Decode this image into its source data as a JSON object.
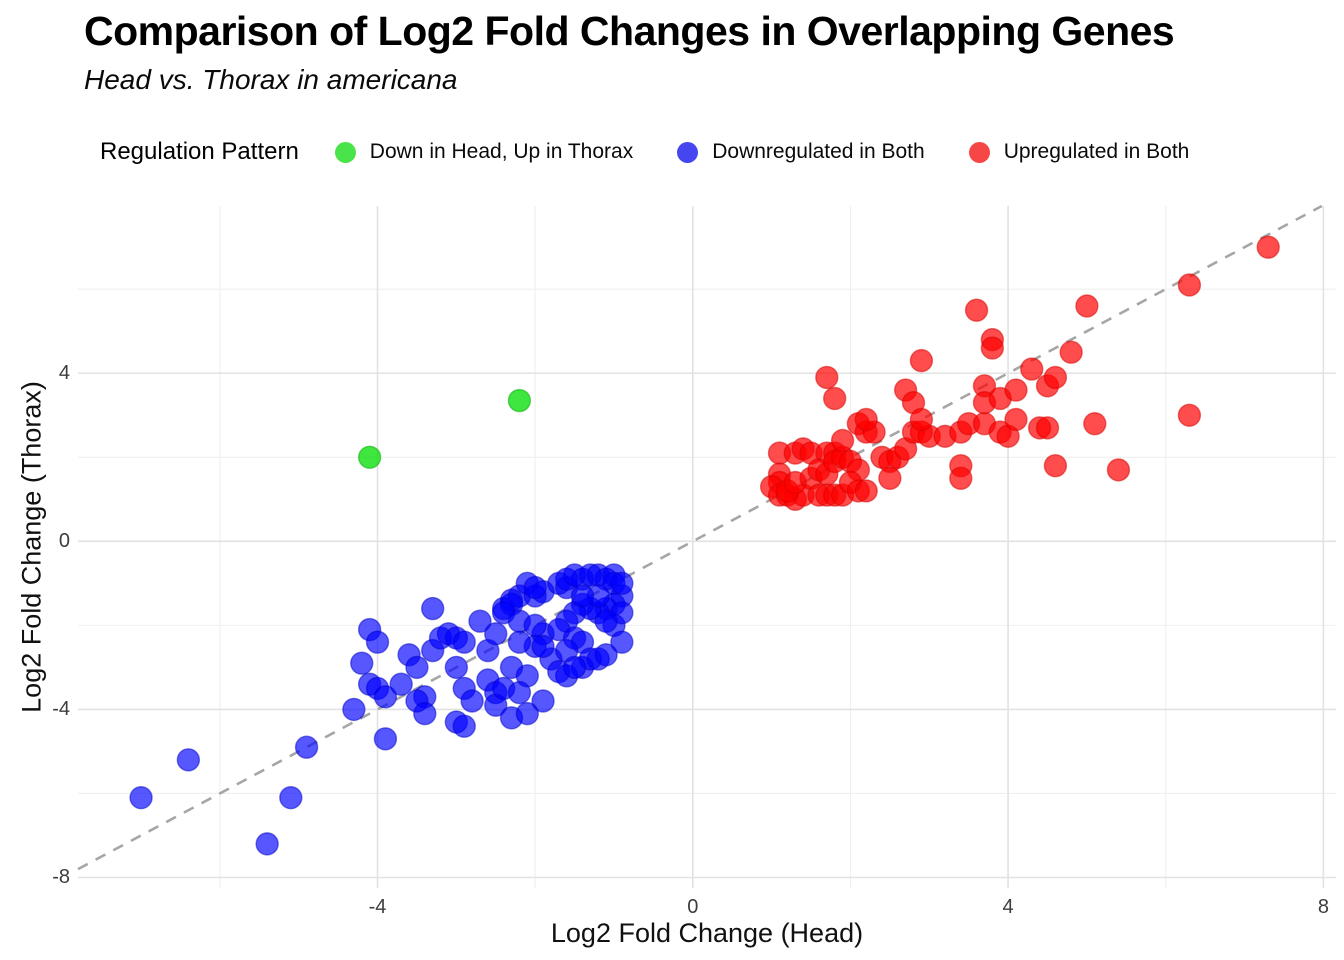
{
  "header": {
    "title": "Comparison of Log2 Fold Changes in Overlapping Genes",
    "subtitle": "Head vs. Thorax in americana"
  },
  "legend": {
    "title": "Regulation Pattern",
    "position": "top"
  },
  "chart_data": {
    "type": "scatter",
    "title": "Comparison of Log2 Fold Changes in Overlapping Genes",
    "subtitle": "Head vs. Thorax in americana",
    "xlabel": "Log2 Fold Change (Head)",
    "ylabel": "Log2 Fold Change (Thorax)",
    "xlim": [
      -7.8,
      8.16
    ],
    "ylim": [
      -8.25,
      7.98
    ],
    "x_ticks": [
      -4,
      0,
      4,
      8
    ],
    "y_ticks": [
      4,
      0,
      -4,
      -8
    ],
    "x_minor_ticks": [
      -6,
      -2,
      2,
      6
    ],
    "y_minor_ticks": [
      6,
      2,
      -2,
      -6
    ],
    "grid": true,
    "background": "#ffffff",
    "major_grid_color": "#e2e2e2",
    "minor_grid_color": "#efefef",
    "identity_line": {
      "equation": "y = x",
      "style": "dashed",
      "color": "#a6a6a6"
    },
    "point_radius_px": 11,
    "series": [
      {
        "name": "Down in Head, Up in Thorax",
        "color": "#00dd00",
        "stroke": "#00a800",
        "legend_color": "#49e449",
        "opacity": 0.75,
        "points": [
          [
            -4.1,
            2.0
          ],
          [
            -2.2,
            3.35
          ]
        ]
      },
      {
        "name": "Downregulated in Both",
        "color": "#0000ff",
        "stroke": "#0000c8",
        "legend_color": "#4646f0",
        "opacity": 0.66,
        "points": [
          [
            -7.0,
            -6.1
          ],
          [
            -6.4,
            -5.2
          ],
          [
            -5.4,
            -7.2
          ],
          [
            -5.1,
            -6.1
          ],
          [
            -4.9,
            -4.9
          ],
          [
            -3.9,
            -4.7
          ],
          [
            -4.3,
            -4.0
          ],
          [
            -4.1,
            -2.1
          ],
          [
            -4.0,
            -2.4
          ],
          [
            -4.2,
            -2.9
          ],
          [
            -4.1,
            -3.4
          ],
          [
            -4.0,
            -3.5
          ],
          [
            -3.9,
            -3.7
          ],
          [
            -3.6,
            -2.7
          ],
          [
            -3.7,
            -3.4
          ],
          [
            -3.5,
            -3.0
          ],
          [
            -3.4,
            -3.7
          ],
          [
            -3.5,
            -3.8
          ],
          [
            -3.4,
            -4.1
          ],
          [
            -3.3,
            -1.6
          ],
          [
            -3.3,
            -2.6
          ],
          [
            -3.2,
            -2.3
          ],
          [
            -3.1,
            -2.2
          ],
          [
            -3.0,
            -2.3
          ],
          [
            -2.9,
            -2.4
          ],
          [
            -3.0,
            -3.0
          ],
          [
            -2.9,
            -3.5
          ],
          [
            -2.8,
            -3.8
          ],
          [
            -3.0,
            -4.3
          ],
          [
            -2.9,
            -4.4
          ],
          [
            -2.7,
            -1.9
          ],
          [
            -2.6,
            -2.6
          ],
          [
            -2.6,
            -3.3
          ],
          [
            -2.5,
            -3.6
          ],
          [
            -2.5,
            -3.9
          ],
          [
            -2.3,
            -4.2
          ],
          [
            -2.4,
            -1.6
          ],
          [
            -2.3,
            -1.4
          ],
          [
            -2.2,
            -1.3
          ],
          [
            -2.1,
            -1.0
          ],
          [
            -2.0,
            -1.3
          ],
          [
            -1.9,
            -1.2
          ],
          [
            -1.9,
            -2.2
          ],
          [
            -2.0,
            -2.5
          ],
          [
            -1.8,
            -2.8
          ],
          [
            -1.7,
            -1.0
          ],
          [
            -1.6,
            -1.1
          ],
          [
            -1.6,
            -0.9
          ],
          [
            -1.5,
            -0.8
          ],
          [
            -1.4,
            -0.9
          ],
          [
            -1.3,
            -0.8
          ],
          [
            -1.2,
            -0.8
          ],
          [
            -1.1,
            -0.9
          ],
          [
            -1.0,
            -0.8
          ],
          [
            -1.0,
            -1.0
          ],
          [
            -0.9,
            -1.3
          ],
          [
            -1.0,
            -1.5
          ],
          [
            -1.1,
            -1.6
          ],
          [
            -1.2,
            -1.7
          ],
          [
            -1.3,
            -1.6
          ],
          [
            -1.4,
            -1.5
          ],
          [
            -1.5,
            -1.7
          ],
          [
            -1.6,
            -1.9
          ],
          [
            -1.7,
            -2.1
          ],
          [
            -1.5,
            -2.3
          ],
          [
            -1.4,
            -2.4
          ],
          [
            -1.6,
            -2.6
          ],
          [
            -1.7,
            -3.1
          ],
          [
            -1.6,
            -3.2
          ],
          [
            -1.4,
            -3.0
          ],
          [
            -1.3,
            -2.8
          ],
          [
            -1.2,
            -2.8
          ],
          [
            -1.1,
            -2.7
          ],
          [
            -1.0,
            -2.0
          ],
          [
            -0.9,
            -1.7
          ],
          [
            -1.9,
            -3.8
          ],
          [
            -2.1,
            -4.1
          ],
          [
            -0.9,
            -2.4
          ],
          [
            -2.0,
            -1.1
          ],
          [
            -0.9,
            -1.0
          ],
          [
            -1.2,
            -1.3
          ],
          [
            -1.4,
            -1.3
          ],
          [
            -2.3,
            -1.5
          ],
          [
            -2.4,
            -1.7
          ],
          [
            -2.2,
            -1.9
          ],
          [
            -2.0,
            -2.0
          ],
          [
            -2.5,
            -2.2
          ],
          [
            -2.2,
            -2.4
          ],
          [
            -1.9,
            -2.5
          ],
          [
            -1.1,
            -1.9
          ],
          [
            -1.5,
            -3.0
          ],
          [
            -2.3,
            -3.0
          ],
          [
            -2.1,
            -3.2
          ],
          [
            -2.4,
            -3.5
          ],
          [
            -2.2,
            -3.6
          ]
        ]
      },
      {
        "name": "Upregulated in Both",
        "color": "#ff0000",
        "stroke": "#d40000",
        "legend_color": "#f74646",
        "opacity": 0.7,
        "points": [
          [
            1.1,
            2.1
          ],
          [
            1.3,
            2.1
          ],
          [
            1.4,
            2.2
          ],
          [
            1.1,
            1.6
          ],
          [
            1.1,
            1.4
          ],
          [
            1.0,
            1.3
          ],
          [
            1.1,
            1.1
          ],
          [
            1.2,
            1.1
          ],
          [
            1.3,
            1.0
          ],
          [
            1.4,
            1.1
          ],
          [
            1.2,
            1.2
          ],
          [
            1.3,
            1.4
          ],
          [
            1.5,
            1.5
          ],
          [
            1.5,
            2.1
          ],
          [
            1.7,
            2.1
          ],
          [
            1.8,
            2.1
          ],
          [
            1.6,
            1.7
          ],
          [
            1.7,
            1.6
          ],
          [
            1.8,
            1.9
          ],
          [
            1.9,
            2.0
          ],
          [
            1.6,
            1.1
          ],
          [
            1.7,
            1.1
          ],
          [
            1.8,
            1.1
          ],
          [
            1.9,
            1.1
          ],
          [
            1.9,
            2.4
          ],
          [
            2.1,
            2.8
          ],
          [
            2.2,
            2.6
          ],
          [
            2.3,
            2.6
          ],
          [
            2.0,
            1.9
          ],
          [
            2.1,
            1.7
          ],
          [
            2.0,
            1.4
          ],
          [
            2.1,
            1.2
          ],
          [
            2.2,
            1.2
          ],
          [
            2.4,
            2.0
          ],
          [
            2.5,
            1.9
          ],
          [
            2.6,
            2.0
          ],
          [
            2.5,
            1.5
          ],
          [
            2.7,
            2.2
          ],
          [
            2.8,
            2.6
          ],
          [
            2.9,
            2.6
          ],
          [
            3.0,
            2.5
          ],
          [
            3.2,
            2.5
          ],
          [
            3.4,
            2.6
          ],
          [
            3.5,
            2.8
          ],
          [
            3.7,
            2.8
          ],
          [
            3.9,
            2.6
          ],
          [
            4.0,
            2.5
          ],
          [
            3.4,
            1.8
          ],
          [
            3.4,
            1.5
          ],
          [
            4.4,
            2.7
          ],
          [
            4.6,
            1.8
          ],
          [
            3.6,
            5.5
          ],
          [
            3.8,
            4.8
          ],
          [
            3.8,
            4.6
          ],
          [
            2.9,
            4.3
          ],
          [
            1.7,
            3.9
          ],
          [
            1.8,
            3.4
          ],
          [
            2.7,
            3.6
          ],
          [
            2.8,
            3.3
          ],
          [
            2.2,
            2.9
          ],
          [
            2.9,
            2.9
          ],
          [
            3.7,
            3.7
          ],
          [
            3.7,
            3.3
          ],
          [
            3.9,
            3.4
          ],
          [
            4.1,
            3.6
          ],
          [
            4.3,
            4.1
          ],
          [
            4.5,
            3.7
          ],
          [
            4.6,
            3.9
          ],
          [
            4.8,
            4.5
          ],
          [
            4.1,
            2.9
          ],
          [
            7.3,
            7.0
          ],
          [
            6.3,
            6.1
          ],
          [
            5.0,
            5.6
          ],
          [
            4.5,
            2.7
          ],
          [
            5.1,
            2.8
          ],
          [
            6.3,
            3.0
          ],
          [
            5.4,
            1.7
          ]
        ]
      }
    ]
  }
}
